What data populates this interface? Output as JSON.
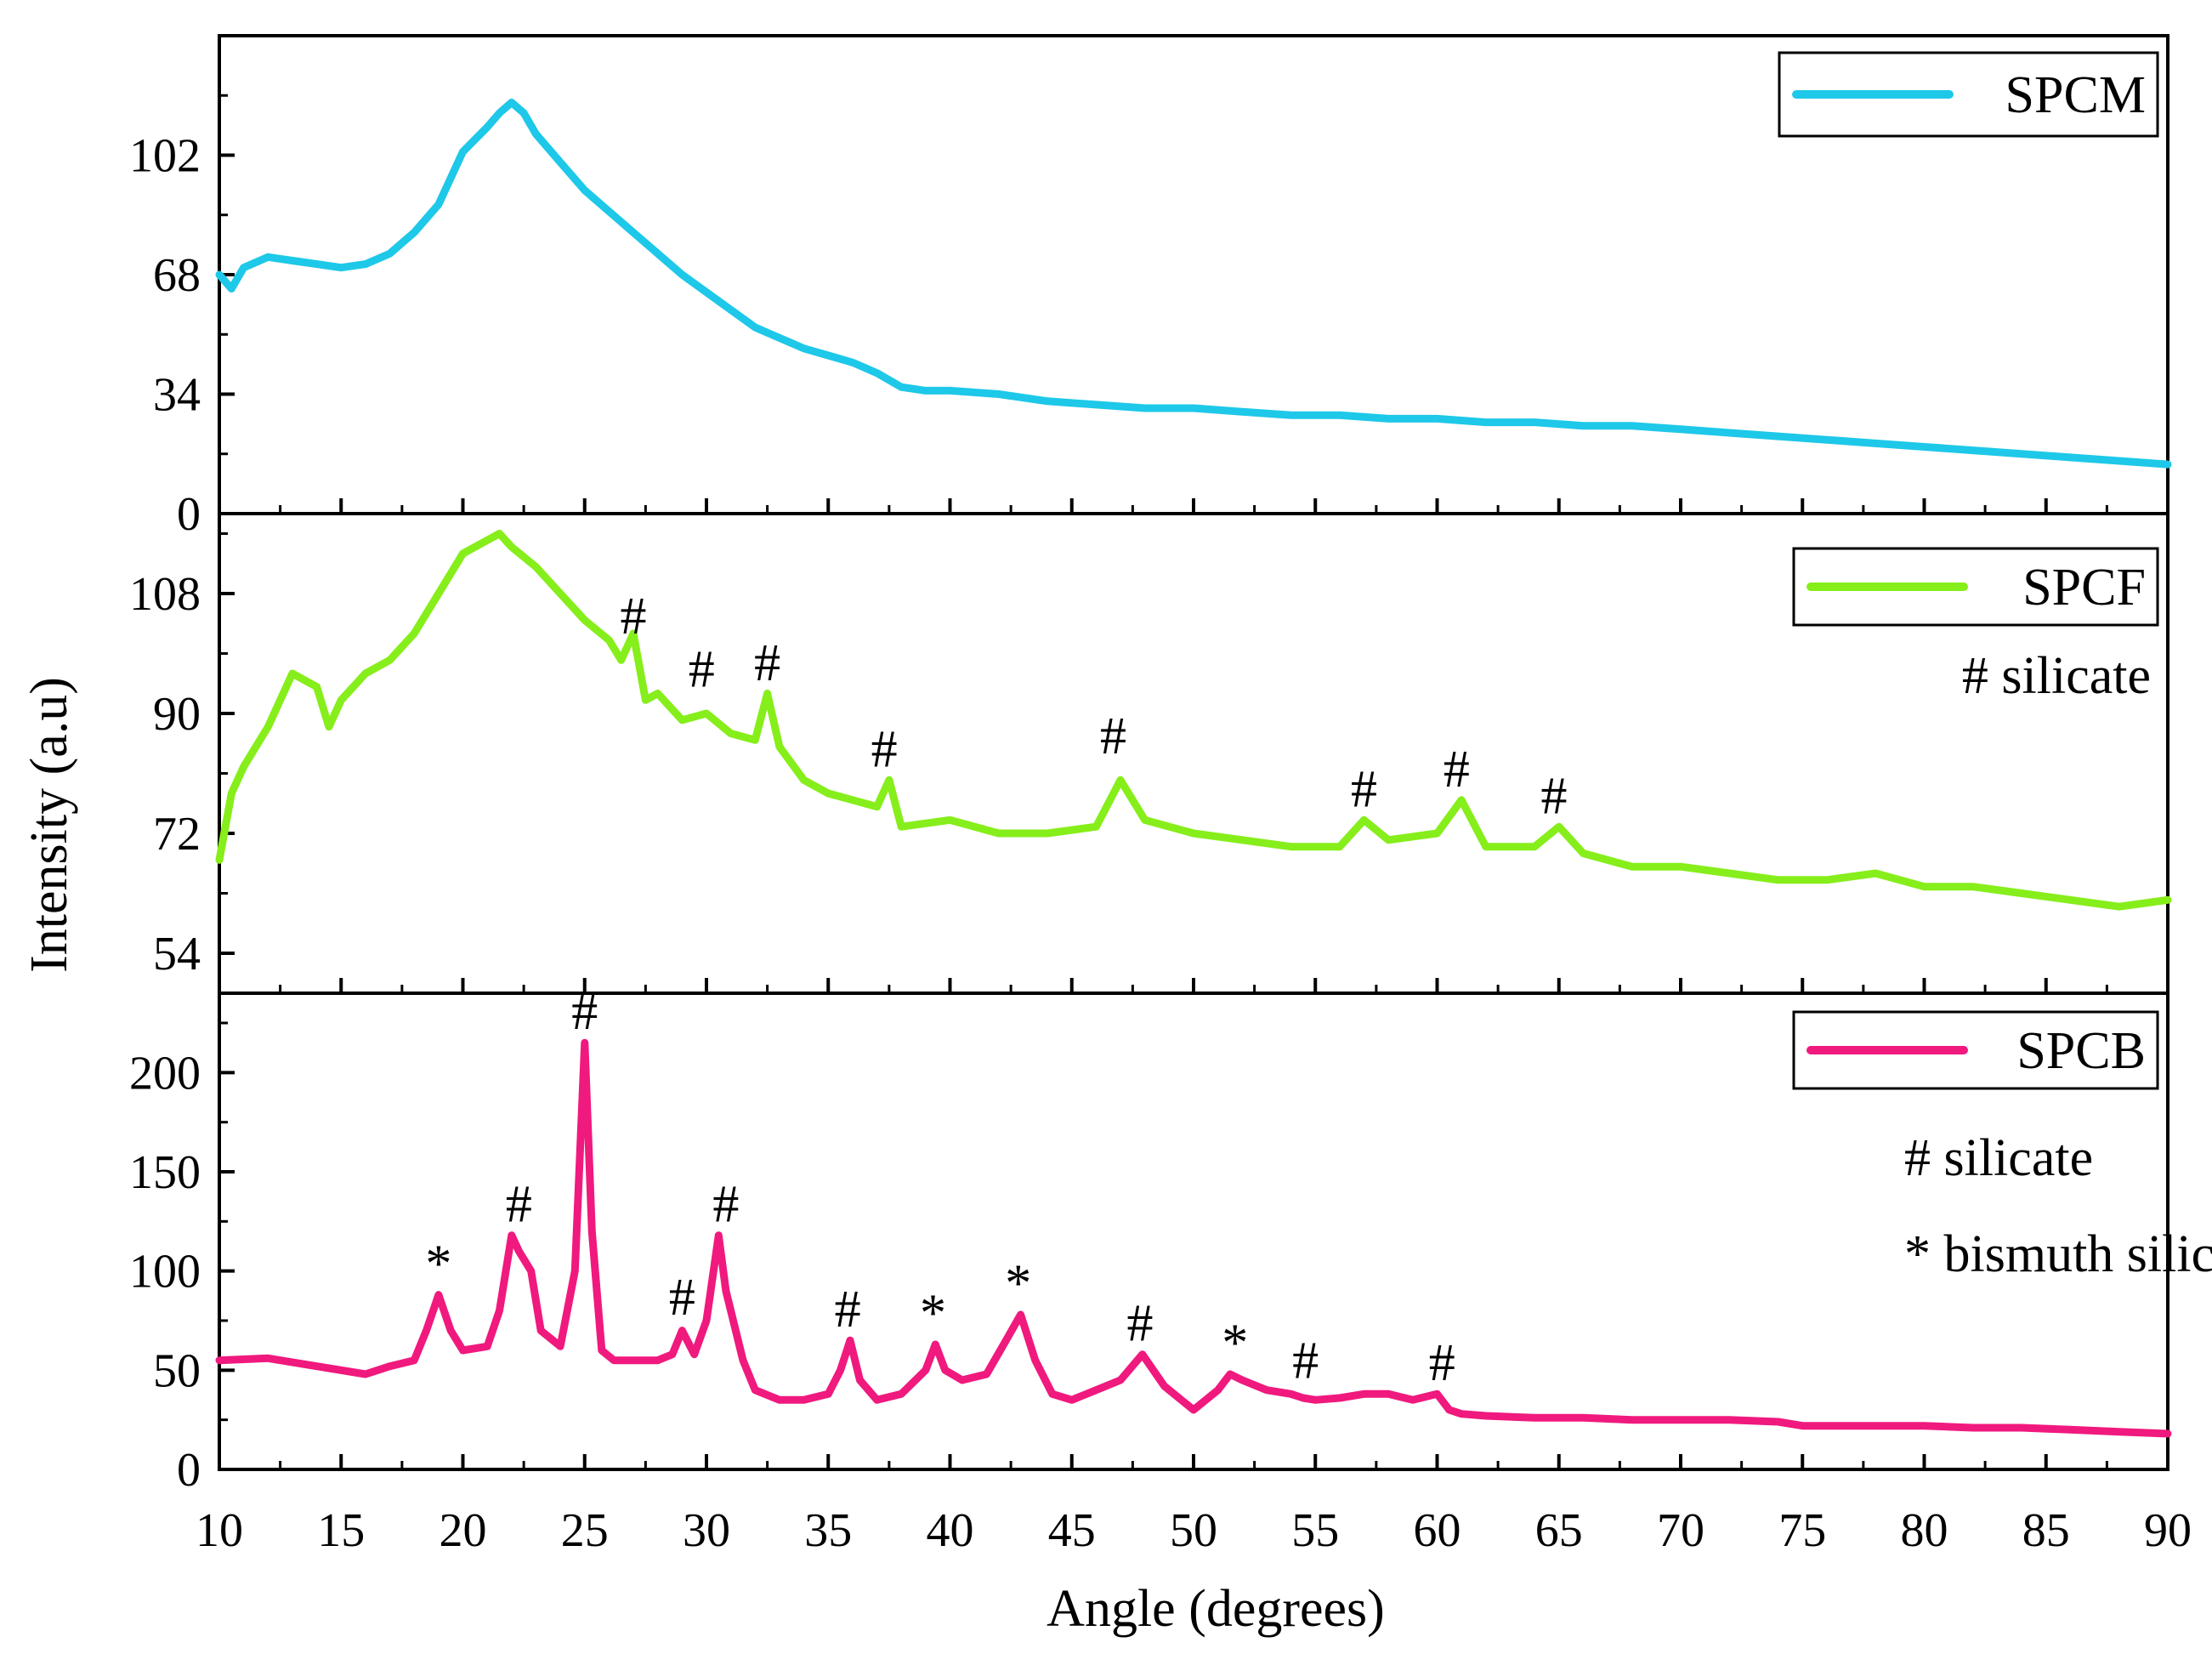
{
  "chart_data": {
    "type": "line",
    "xlabel": "Angle (degrees)",
    "ylabel": "Intensity (a.u)",
    "xlim": [
      10,
      90
    ],
    "xticks": [
      10,
      15,
      20,
      25,
      30,
      35,
      40,
      45,
      50,
      55,
      60,
      65,
      70,
      75,
      80,
      85,
      90
    ],
    "panels": [
      {
        "name": "SPCM",
        "color": "#1EC8E8",
        "ylim": [
          0,
          136
        ],
        "yticks": [
          0,
          34,
          68,
          102
        ],
        "legend": "SPCM",
        "notes": [],
        "x": [
          10,
          10.5,
          11,
          12,
          13,
          14,
          15,
          16,
          17,
          18,
          19,
          20,
          21,
          21.5,
          22,
          22.5,
          23,
          24,
          25,
          26,
          27,
          28,
          29,
          30,
          31,
          32,
          33,
          34,
          35,
          36,
          37,
          38,
          39,
          40,
          42,
          44,
          46,
          48,
          50,
          52,
          54,
          56,
          58,
          60,
          62,
          64,
          66,
          68,
          70,
          72,
          74,
          76,
          78,
          80,
          82,
          84,
          86,
          88,
          90
        ],
        "y": [
          68,
          64,
          70,
          73,
          72,
          71,
          70,
          71,
          74,
          80,
          88,
          103,
          110,
          114,
          117,
          114,
          108,
          100,
          92,
          86,
          80,
          74,
          68,
          63,
          58,
          53,
          50,
          47,
          45,
          43,
          40,
          36,
          35,
          35,
          34,
          32,
          31,
          30,
          30,
          29,
          28,
          28,
          27,
          27,
          26,
          26,
          25,
          25,
          24,
          23,
          22,
          21,
          20,
          19,
          18,
          17,
          16,
          15,
          14
        ]
      },
      {
        "name": "SPCF",
        "color": "#86EE1A",
        "ylim": [
          48,
          120
        ],
        "yticks": [
          54,
          72,
          90,
          108
        ],
        "legend": "SPCF",
        "notes": [
          "# silicate"
        ],
        "x": [
          10,
          10.5,
          11,
          12,
          13,
          14,
          14.5,
          15,
          16,
          17,
          18,
          19,
          20,
          21,
          21.5,
          22,
          23,
          24,
          25,
          26,
          26.5,
          27,
          27.5,
          28,
          29,
          30,
          31,
          32,
          32.5,
          33,
          34,
          35,
          36,
          37,
          37.5,
          38,
          40,
          42,
          44,
          46,
          47,
          48,
          50,
          52,
          54,
          56,
          57,
          58,
          60,
          61,
          62,
          64,
          65,
          66,
          68,
          70,
          72,
          74,
          76,
          78,
          80,
          82,
          84,
          86,
          88,
          90
        ],
        "y": [
          68,
          78,
          82,
          88,
          96,
          94,
          88,
          92,
          96,
          98,
          102,
          108,
          114,
          116,
          117,
          115,
          112,
          108,
          104,
          101,
          98,
          102,
          92,
          93,
          89,
          90,
          87,
          86,
          93,
          85,
          80,
          78,
          77,
          76,
          80,
          73,
          74,
          72,
          72,
          73,
          80,
          74,
          72,
          71,
          70,
          70,
          74,
          71,
          72,
          77,
          70,
          70,
          73,
          69,
          67,
          67,
          66,
          65,
          65,
          66,
          64,
          64,
          63,
          62,
          61,
          62
        ]
      },
      {
        "name": "SPCB",
        "color": "#F0197E",
        "ylim": [
          0,
          240
        ],
        "yticks": [
          0,
          50,
          100,
          150,
          200
        ],
        "legend": "SPCB",
        "notes": [
          "# silicate",
          "* bismuth silicate"
        ],
        "x": [
          10,
          12,
          14,
          16,
          17,
          18,
          18.5,
          19,
          19.5,
          20,
          21,
          21.5,
          22,
          22.3,
          22.8,
          23.2,
          24,
          24.6,
          25,
          25.3,
          25.7,
          26.2,
          27,
          28,
          28.6,
          29,
          29.5,
          30,
          30.5,
          30.8,
          31.5,
          32,
          33,
          34,
          35,
          35.5,
          35.9,
          36.3,
          37,
          38,
          39,
          39.4,
          39.8,
          40.5,
          41.5,
          42.3,
          42.9,
          43.5,
          44.2,
          45,
          46,
          47,
          47.9,
          48.8,
          50,
          51,
          51.5,
          52,
          53,
          54,
          54.5,
          55,
          56,
          57,
          58,
          59,
          60,
          60.5,
          61,
          62,
          64,
          66,
          68,
          70,
          72,
          74,
          75,
          78,
          80,
          82,
          84,
          86,
          88,
          90
        ],
        "y": [
          55,
          56,
          52,
          48,
          52,
          55,
          70,
          88,
          70,
          60,
          62,
          80,
          118,
          110,
          100,
          70,
          62,
          100,
          215,
          120,
          60,
          55,
          55,
          55,
          58,
          70,
          58,
          75,
          118,
          90,
          55,
          40,
          35,
          35,
          38,
          50,
          65,
          45,
          35,
          38,
          50,
          63,
          50,
          45,
          48,
          65,
          78,
          55,
          38,
          35,
          40,
          45,
          58,
          42,
          30,
          40,
          48,
          45,
          40,
          38,
          36,
          35,
          36,
          38,
          38,
          35,
          38,
          30,
          28,
          27,
          26,
          26,
          25,
          25,
          25,
          24,
          22,
          22,
          22,
          21,
          21,
          20,
          19,
          18
        ]
      }
    ],
    "annotations": [
      {
        "panel": 1,
        "symbol": "#",
        "x": 27.0,
        "y": 102
      },
      {
        "panel": 1,
        "symbol": "#",
        "x": 29.8,
        "y": 94
      },
      {
        "panel": 1,
        "symbol": "#",
        "x": 32.5,
        "y": 95
      },
      {
        "panel": 1,
        "symbol": "#",
        "x": 37.3,
        "y": 82
      },
      {
        "panel": 1,
        "symbol": "#",
        "x": 46.7,
        "y": 84
      },
      {
        "panel": 1,
        "symbol": "#",
        "x": 57.0,
        "y": 76
      },
      {
        "panel": 1,
        "symbol": "#",
        "x": 60.8,
        "y": 79
      },
      {
        "panel": 1,
        "symbol": "#",
        "x": 64.8,
        "y": 75
      },
      {
        "panel": 2,
        "symbol": "*",
        "x": 19.0,
        "y": 95
      },
      {
        "panel": 2,
        "symbol": "#",
        "x": 22.3,
        "y": 125
      },
      {
        "panel": 2,
        "symbol": "#",
        "x": 25.0,
        "y": 222
      },
      {
        "panel": 2,
        "symbol": "#",
        "x": 29.0,
        "y": 78
      },
      {
        "panel": 2,
        "symbol": "#",
        "x": 30.8,
        "y": 125
      },
      {
        "panel": 2,
        "symbol": "#",
        "x": 35.8,
        "y": 72
      },
      {
        "panel": 2,
        "symbol": "*",
        "x": 39.3,
        "y": 70
      },
      {
        "panel": 2,
        "symbol": "*",
        "x": 42.8,
        "y": 85
      },
      {
        "panel": 2,
        "symbol": "#",
        "x": 47.8,
        "y": 65
      },
      {
        "panel": 2,
        "symbol": "*",
        "x": 51.7,
        "y": 55
      },
      {
        "panel": 2,
        "symbol": "#",
        "x": 54.6,
        "y": 46
      },
      {
        "panel": 2,
        "symbol": "#",
        "x": 60.2,
        "y": 45
      }
    ]
  }
}
